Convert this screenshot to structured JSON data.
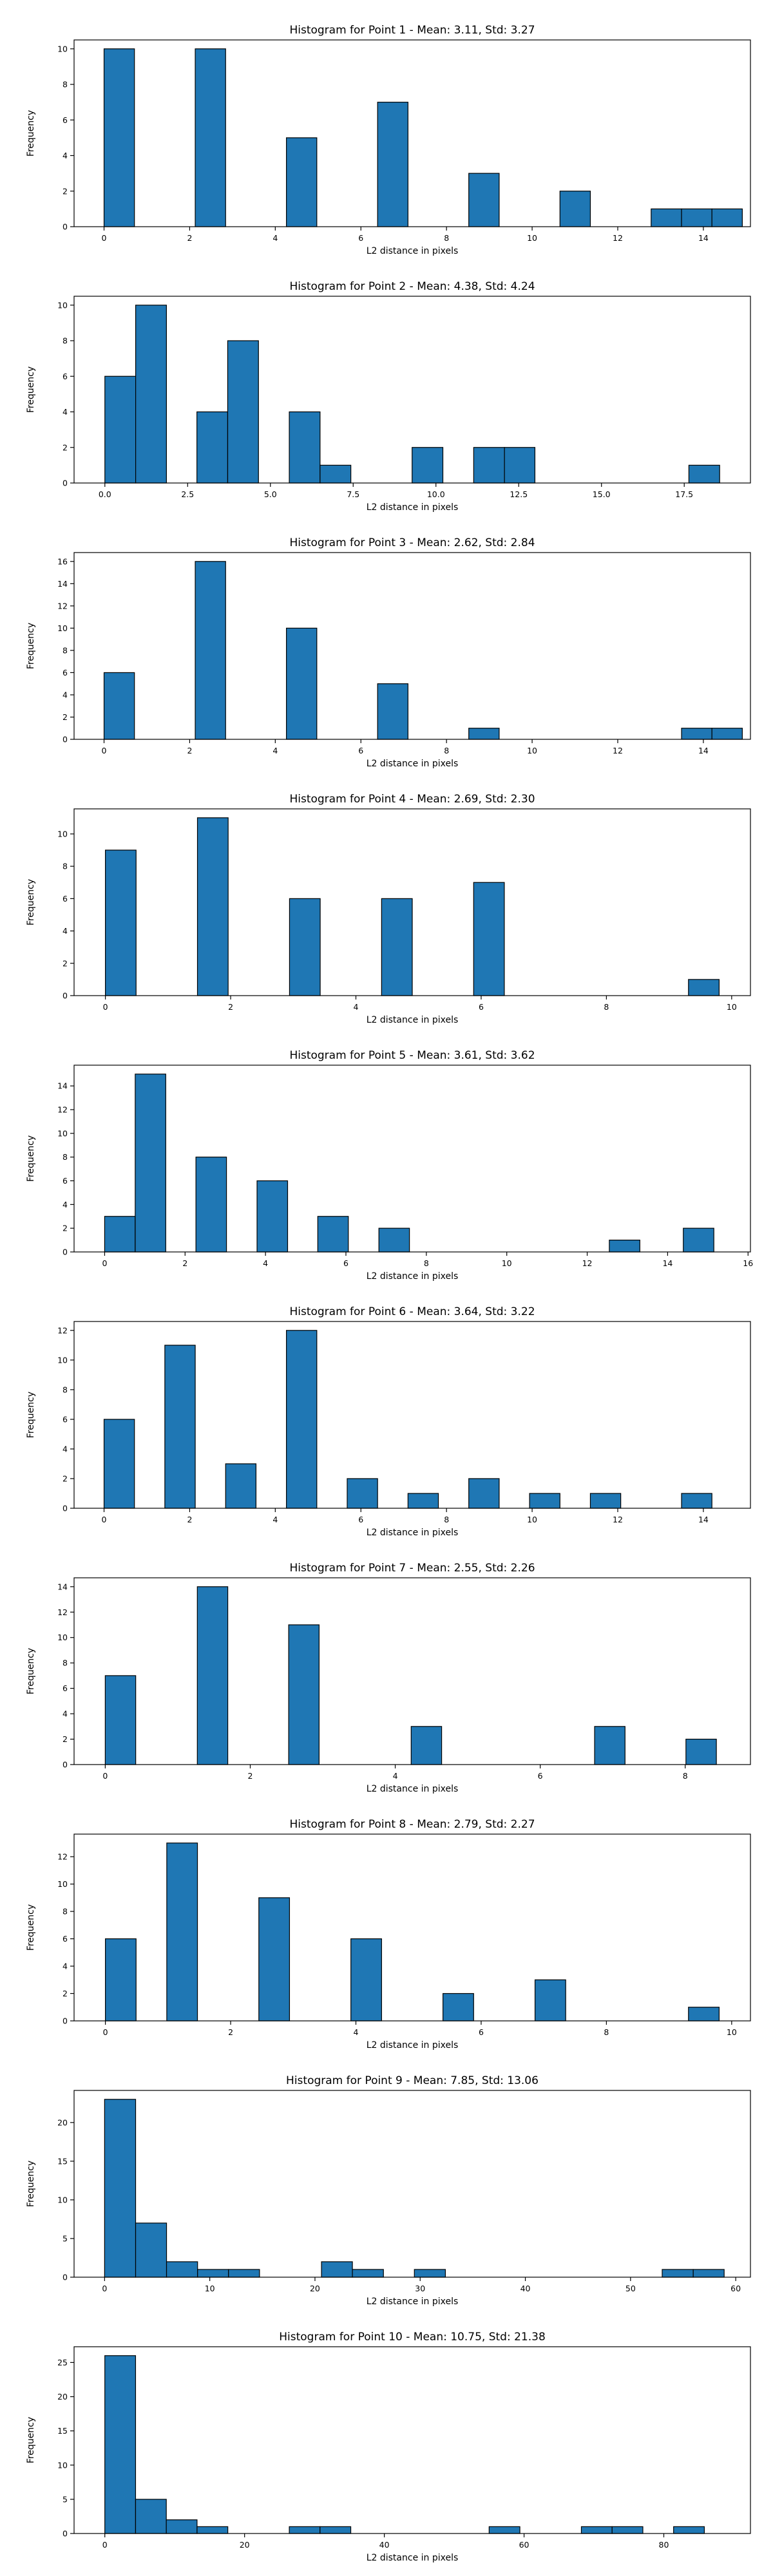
{
  "chart_data": [
    {
      "type": "bar",
      "title": "Histogram for Point 1 - Mean: 3.11, Std: 3.27",
      "xlabel": "L2 distance in pixels",
      "ylabel": "Frequency",
      "xlim": [
        -0.7,
        15.1
      ],
      "ylim": [
        0,
        10.5
      ],
      "xticks": [
        0,
        2,
        4,
        6,
        8,
        10,
        12,
        14
      ],
      "xtick_labels": [
        "0",
        "2",
        "4",
        "6",
        "8",
        "10",
        "12",
        "14"
      ],
      "yticks": [
        0,
        2,
        4,
        6,
        8,
        10
      ],
      "ytick_labels": [
        "0",
        "2",
        "4",
        "6",
        "8",
        "10"
      ],
      "bins": [
        {
          "x0": 0.0,
          "x1": 0.71,
          "count": 10
        },
        {
          "x0": 2.13,
          "x1": 2.84,
          "count": 10
        },
        {
          "x0": 4.26,
          "x1": 4.97,
          "count": 5
        },
        {
          "x0": 6.39,
          "x1": 7.1,
          "count": 7
        },
        {
          "x0": 8.52,
          "x1": 9.23,
          "count": 3
        },
        {
          "x0": 10.65,
          "x1": 11.36,
          "count": 2
        },
        {
          "x0": 12.78,
          "x1": 13.49,
          "count": 1
        },
        {
          "x0": 13.49,
          "x1": 14.2,
          "count": 1
        },
        {
          "x0": 14.2,
          "x1": 14.91,
          "count": 1
        }
      ]
    },
    {
      "type": "bar",
      "title": "Histogram for Point 2 - Mean: 4.38, Std: 4.24",
      "xlabel": "L2 distance in pixels",
      "ylabel": "Frequency",
      "xlim": [
        -0.93,
        19.5
      ],
      "ylim": [
        0,
        10.5
      ],
      "xticks": [
        0,
        2.5,
        5,
        7.5,
        10,
        12.5,
        15,
        17.5
      ],
      "xtick_labels": [
        "0.0",
        "2.5",
        "5.0",
        "7.5",
        "10.0",
        "12.5",
        "15.0",
        "17.5"
      ],
      "yticks": [
        0,
        2,
        4,
        6,
        8,
        10
      ],
      "ytick_labels": [
        "0",
        "2",
        "4",
        "6",
        "8",
        "10"
      ],
      "bins": [
        {
          "x0": 0.0,
          "x1": 0.93,
          "count": 6
        },
        {
          "x0": 0.93,
          "x1": 1.86,
          "count": 10
        },
        {
          "x0": 2.78,
          "x1": 3.71,
          "count": 4
        },
        {
          "x0": 3.71,
          "x1": 4.64,
          "count": 8
        },
        {
          "x0": 5.57,
          "x1": 6.5,
          "count": 4
        },
        {
          "x0": 6.5,
          "x1": 7.43,
          "count": 1
        },
        {
          "x0": 9.28,
          "x1": 10.21,
          "count": 2
        },
        {
          "x0": 11.14,
          "x1": 12.07,
          "count": 2
        },
        {
          "x0": 12.07,
          "x1": 12.99,
          "count": 2
        },
        {
          "x0": 17.64,
          "x1": 18.57,
          "count": 1
        }
      ]
    },
    {
      "type": "bar",
      "title": "Histogram for Point 3 - Mean: 2.62, Std: 2.84",
      "xlabel": "L2 distance in pixels",
      "ylabel": "Frequency",
      "xlim": [
        -0.7,
        15.1
      ],
      "ylim": [
        0,
        16.8
      ],
      "xticks": [
        0,
        2,
        4,
        6,
        8,
        10,
        12,
        14
      ],
      "xtick_labels": [
        "0",
        "2",
        "4",
        "6",
        "8",
        "10",
        "12",
        "14"
      ],
      "yticks": [
        0,
        2,
        4,
        6,
        8,
        10,
        12,
        14,
        16
      ],
      "ytick_labels": [
        "0",
        "2",
        "4",
        "6",
        "8",
        "10",
        "12",
        "14",
        "16"
      ],
      "bins": [
        {
          "x0": 0.0,
          "x1": 0.71,
          "count": 6
        },
        {
          "x0": 2.13,
          "x1": 2.84,
          "count": 16
        },
        {
          "x0": 4.26,
          "x1": 4.97,
          "count": 10
        },
        {
          "x0": 6.39,
          "x1": 7.1,
          "count": 5
        },
        {
          "x0": 8.52,
          "x1": 9.23,
          "count": 1
        },
        {
          "x0": 13.49,
          "x1": 14.2,
          "count": 1
        },
        {
          "x0": 14.2,
          "x1": 14.91,
          "count": 1
        }
      ]
    },
    {
      "type": "bar",
      "title": "Histogram for Point 4 - Mean: 2.69, Std: 2.30",
      "xlabel": "L2 distance in pixels",
      "ylabel": "Frequency",
      "xlim": [
        -0.5,
        10.3
      ],
      "ylim": [
        0,
        11.55
      ],
      "xticks": [
        0,
        2,
        4,
        6,
        8,
        10
      ],
      "xtick_labels": [
        "0",
        "2",
        "4",
        "6",
        "8",
        "10"
      ],
      "yticks": [
        0,
        2,
        4,
        6,
        8,
        10
      ],
      "ytick_labels": [
        "0",
        "2",
        "4",
        "6",
        "8",
        "10"
      ],
      "bins": [
        {
          "x0": 0.0,
          "x1": 0.49,
          "count": 9
        },
        {
          "x0": 1.47,
          "x1": 1.96,
          "count": 11
        },
        {
          "x0": 2.94,
          "x1": 3.43,
          "count": 6
        },
        {
          "x0": 4.41,
          "x1": 4.9,
          "count": 6
        },
        {
          "x0": 5.88,
          "x1": 6.37,
          "count": 7
        },
        {
          "x0": 9.31,
          "x1": 9.8,
          "count": 1
        }
      ]
    },
    {
      "type": "bar",
      "title": "Histogram for Point 5 - Mean: 3.61, Std: 3.62",
      "xlabel": "L2 distance in pixels",
      "ylabel": "Frequency",
      "xlim": [
        -0.76,
        16.06
      ],
      "ylim": [
        0,
        15.75
      ],
      "xticks": [
        0,
        2,
        4,
        6,
        8,
        10,
        12,
        14,
        16
      ],
      "xtick_labels": [
        "0",
        "2",
        "4",
        "6",
        "8",
        "10",
        "12",
        "14",
        "16"
      ],
      "yticks": [
        0,
        2,
        4,
        6,
        8,
        10,
        12,
        14
      ],
      "ytick_labels": [
        "0",
        "2",
        "4",
        "6",
        "8",
        "10",
        "12",
        "14"
      ],
      "bins": [
        {
          "x0": 0.0,
          "x1": 0.76,
          "count": 3
        },
        {
          "x0": 0.76,
          "x1": 1.52,
          "count": 15
        },
        {
          "x0": 2.27,
          "x1": 3.03,
          "count": 8
        },
        {
          "x0": 3.79,
          "x1": 4.55,
          "count": 6
        },
        {
          "x0": 5.3,
          "x1": 6.06,
          "count": 3
        },
        {
          "x0": 6.82,
          "x1": 7.58,
          "count": 2
        },
        {
          "x0": 12.55,
          "x1": 13.31,
          "count": 1
        },
        {
          "x0": 14.39,
          "x1": 15.15,
          "count": 2
        }
      ]
    },
    {
      "type": "bar",
      "title": "Histogram for Point 6 - Mean: 3.64, Std: 3.22",
      "xlabel": "L2 distance in pixels",
      "ylabel": "Frequency",
      "xlim": [
        -0.7,
        15.1
      ],
      "ylim": [
        0,
        12.6
      ],
      "xticks": [
        0,
        2,
        4,
        6,
        8,
        10,
        12,
        14
      ],
      "xtick_labels": [
        "0",
        "2",
        "4",
        "6",
        "8",
        "10",
        "12",
        "14"
      ],
      "yticks": [
        0,
        2,
        4,
        6,
        8,
        10,
        12
      ],
      "ytick_labels": [
        "0",
        "2",
        "4",
        "6",
        "8",
        "10",
        "12"
      ],
      "bins": [
        {
          "x0": 0.0,
          "x1": 0.71,
          "count": 6
        },
        {
          "x0": 1.42,
          "x1": 2.13,
          "count": 11
        },
        {
          "x0": 2.84,
          "x1": 3.55,
          "count": 3
        },
        {
          "x0": 4.26,
          "x1": 4.97,
          "count": 12
        },
        {
          "x0": 5.68,
          "x1": 6.39,
          "count": 2
        },
        {
          "x0": 7.1,
          "x1": 7.81,
          "count": 1
        },
        {
          "x0": 8.52,
          "x1": 9.23,
          "count": 2
        },
        {
          "x0": 9.94,
          "x1": 10.65,
          "count": 1
        },
        {
          "x0": 11.36,
          "x1": 12.07,
          "count": 1
        },
        {
          "x0": 13.49,
          "x1": 14.2,
          "count": 1
        }
      ]
    },
    {
      "type": "bar",
      "title": "Histogram for Point 7 - Mean: 2.55, Std: 2.26",
      "xlabel": "L2 distance in pixels",
      "ylabel": "Frequency",
      "xlim": [
        -0.43,
        8.9
      ],
      "ylim": [
        0,
        14.7
      ],
      "xticks": [
        0,
        2,
        4,
        6,
        8
      ],
      "xtick_labels": [
        "0",
        "2",
        "4",
        "6",
        "8"
      ],
      "yticks": [
        0,
        2,
        4,
        6,
        8,
        10,
        12,
        14
      ],
      "ytick_labels": [
        "0",
        "2",
        "4",
        "6",
        "8",
        "10",
        "12",
        "14"
      ],
      "bins": [
        {
          "x0": 0.0,
          "x1": 0.42,
          "count": 7
        },
        {
          "x0": 1.27,
          "x1": 1.69,
          "count": 14
        },
        {
          "x0": 2.53,
          "x1": 2.95,
          "count": 11
        },
        {
          "x0": 4.22,
          "x1": 4.64,
          "count": 3
        },
        {
          "x0": 6.75,
          "x1": 7.17,
          "count": 3
        },
        {
          "x0": 8.01,
          "x1": 8.43,
          "count": 2
        }
      ]
    },
    {
      "type": "bar",
      "title": "Histogram for Point 8 - Mean: 2.79, Std: 2.27",
      "xlabel": "L2 distance in pixels",
      "ylabel": "Frequency",
      "xlim": [
        -0.5,
        10.3
      ],
      "ylim": [
        0,
        13.65
      ],
      "xticks": [
        0,
        2,
        4,
        6,
        8,
        10
      ],
      "xtick_labels": [
        "0",
        "2",
        "4",
        "6",
        "8",
        "10"
      ],
      "yticks": [
        0,
        2,
        4,
        6,
        8,
        10,
        12
      ],
      "ytick_labels": [
        "0",
        "2",
        "4",
        "6",
        "8",
        "10",
        "12"
      ],
      "bins": [
        {
          "x0": 0.0,
          "x1": 0.49,
          "count": 6
        },
        {
          "x0": 0.98,
          "x1": 1.47,
          "count": 13
        },
        {
          "x0": 2.45,
          "x1": 2.94,
          "count": 9
        },
        {
          "x0": 3.92,
          "x1": 4.41,
          "count": 6
        },
        {
          "x0": 5.39,
          "x1": 5.88,
          "count": 2
        },
        {
          "x0": 6.86,
          "x1": 7.35,
          "count": 3
        },
        {
          "x0": 9.31,
          "x1": 9.8,
          "count": 1
        }
      ]
    },
    {
      "type": "bar",
      "title": "Histogram for Point 9 - Mean: 7.85, Std: 13.06",
      "xlabel": "L2 distance in pixels",
      "ylabel": "Frequency",
      "xlim": [
        -2.9,
        61.4
      ],
      "ylim": [
        0,
        24.15
      ],
      "xticks": [
        0,
        10,
        20,
        30,
        40,
        50,
        60
      ],
      "xtick_labels": [
        "0",
        "10",
        "20",
        "30",
        "40",
        "50",
        "60"
      ],
      "yticks": [
        0,
        5,
        10,
        15,
        20
      ],
      "ytick_labels": [
        "0",
        "5",
        "10",
        "15",
        "20"
      ],
      "bins": [
        {
          "x0": 0.0,
          "x1": 2.95,
          "count": 23
        },
        {
          "x0": 2.95,
          "x1": 5.89,
          "count": 7
        },
        {
          "x0": 5.89,
          "x1": 8.84,
          "count": 2
        },
        {
          "x0": 8.84,
          "x1": 11.78,
          "count": 1
        },
        {
          "x0": 11.78,
          "x1": 14.73,
          "count": 1
        },
        {
          "x0": 20.62,
          "x1": 23.56,
          "count": 2
        },
        {
          "x0": 23.56,
          "x1": 26.51,
          "count": 1
        },
        {
          "x0": 29.45,
          "x1": 32.4,
          "count": 1
        },
        {
          "x0": 53.01,
          "x1": 55.96,
          "count": 1
        },
        {
          "x0": 55.96,
          "x1": 58.9,
          "count": 1
        }
      ]
    },
    {
      "type": "bar",
      "title": "Histogram for Point 10 - Mean: 10.75, Std: 21.38",
      "xlabel": "L2 distance in pixels",
      "ylabel": "Frequency",
      "xlim": [
        -4.4,
        92.4
      ],
      "ylim": [
        0,
        27.3
      ],
      "xticks": [
        0,
        20,
        40,
        60,
        80
      ],
      "xtick_labels": [
        "0",
        "20",
        "40",
        "60",
        "80"
      ],
      "yticks": [
        0,
        5,
        10,
        15,
        20,
        25
      ],
      "ytick_labels": [
        "0",
        "5",
        "10",
        "15",
        "20",
        "25"
      ],
      "bins": [
        {
          "x0": 0.0,
          "x1": 4.4,
          "count": 26
        },
        {
          "x0": 4.4,
          "x1": 8.8,
          "count": 5
        },
        {
          "x0": 8.8,
          "x1": 13.2,
          "count": 2
        },
        {
          "x0": 13.2,
          "x1": 17.6,
          "count": 1
        },
        {
          "x0": 26.4,
          "x1": 30.8,
          "count": 1
        },
        {
          "x0": 30.8,
          "x1": 35.2,
          "count": 1
        },
        {
          "x0": 55.0,
          "x1": 59.4,
          "count": 1
        },
        {
          "x0": 68.2,
          "x1": 72.6,
          "count": 1
        },
        {
          "x0": 72.6,
          "x1": 77.0,
          "count": 1
        },
        {
          "x0": 81.4,
          "x1": 85.8,
          "count": 1
        }
      ]
    }
  ]
}
